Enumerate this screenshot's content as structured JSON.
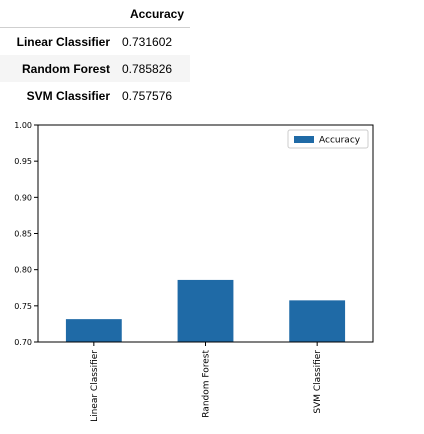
{
  "table": {
    "column_header": "Accuracy",
    "rows": [
      {
        "label": "Linear Classifier",
        "value": "0.731602"
      },
      {
        "label": "Random Forest",
        "value": "0.785826"
      },
      {
        "label": "SVM Classifier",
        "value": "0.757576"
      }
    ]
  },
  "chart_data": {
    "type": "bar",
    "categories": [
      "Linear Classifier",
      "Random Forest",
      "SVM Classifier"
    ],
    "series": [
      {
        "name": "Accuracy",
        "values": [
          0.731602,
          0.785826,
          0.757576
        ],
        "color": "#1f6aa6"
      }
    ],
    "ylim": [
      0.7,
      1.0
    ],
    "yticks": [
      "0.70",
      "0.75",
      "0.80",
      "0.85",
      "0.90",
      "0.95",
      "1.00"
    ],
    "ytick_values": [
      0.7,
      0.75,
      0.8,
      0.85,
      0.9,
      0.95,
      1.0
    ],
    "grid": false,
    "legend_position": "top-right",
    "xlabel": "",
    "ylabel": "",
    "title": ""
  }
}
